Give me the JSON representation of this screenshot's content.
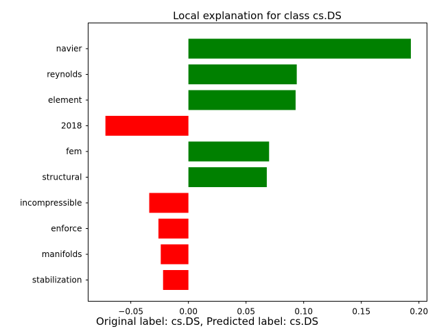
{
  "chart_data": {
    "type": "bar",
    "orientation": "horizontal",
    "title": "Local explanation for class cs.DS",
    "xlabel": "",
    "ylabel": "",
    "categories": [
      "navier",
      "reynolds",
      "element",
      "2018",
      "fem",
      "structural",
      "incompressible",
      "enforce",
      "manifolds",
      "stabilization"
    ],
    "values": [
      0.193,
      0.094,
      0.093,
      -0.072,
      0.07,
      0.068,
      -0.034,
      -0.026,
      -0.024,
      -0.022
    ],
    "xlim": [
      -0.087,
      0.207
    ],
    "xticks": [
      -0.05,
      0.0,
      0.05,
      0.1,
      0.15,
      0.2
    ],
    "xtick_labels": [
      "−0.05",
      "0.00",
      "0.05",
      "0.10",
      "0.15",
      "0.20"
    ],
    "grid": false,
    "legend": "none",
    "colors": {
      "positive": "#008000",
      "negative": "#ff0000"
    }
  },
  "caption": "Original label: cs.DS, Predicted label: cs.DS"
}
